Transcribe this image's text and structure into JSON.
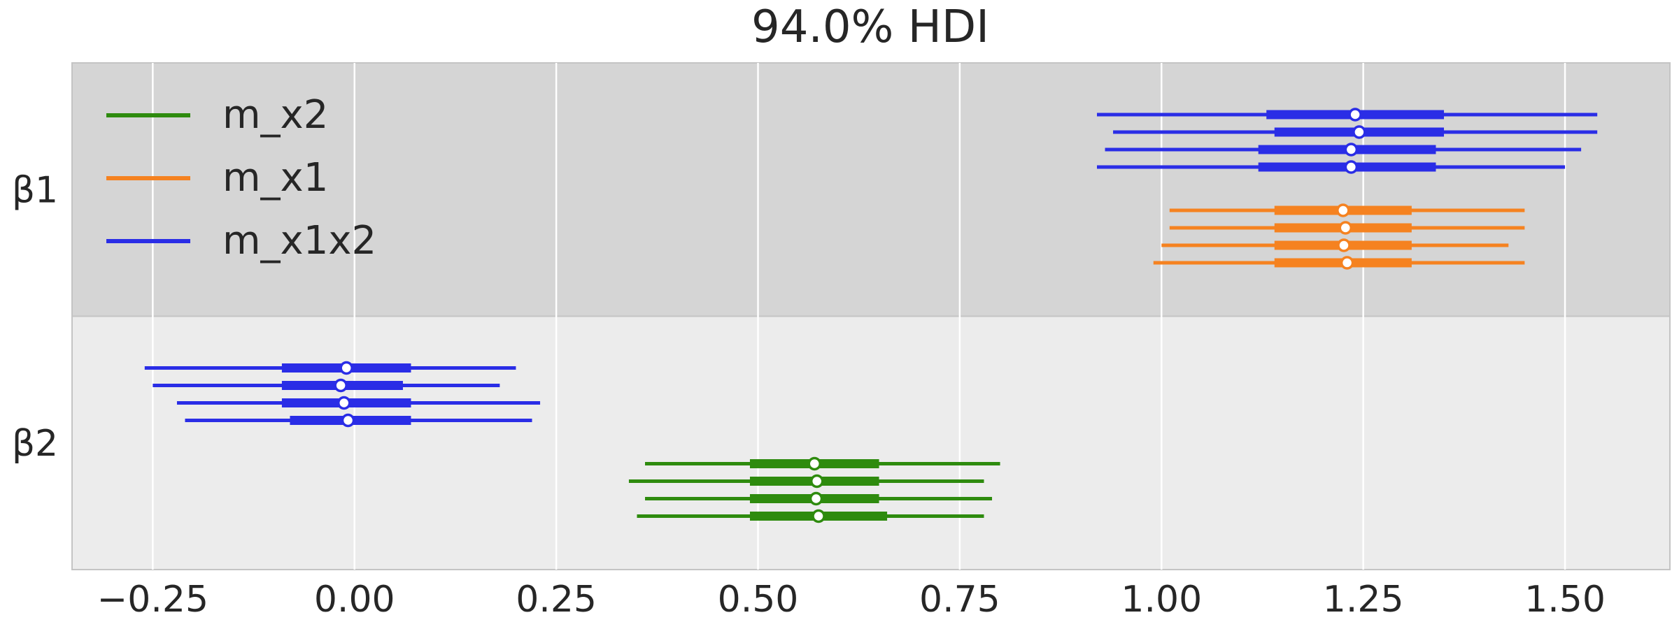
{
  "chart_data": {
    "type": "forest",
    "title": "94.0% HDI",
    "xlabel": "",
    "ylabel": "",
    "xlim": [
      -0.35,
      1.63
    ],
    "xticks": [
      -0.25,
      0.0,
      0.25,
      0.5,
      0.75,
      1.0,
      1.25,
      1.5
    ],
    "xtick_labels": [
      "−0.25",
      "0.00",
      "0.25",
      "0.50",
      "0.75",
      "1.00",
      "1.25",
      "1.50"
    ],
    "grid": true,
    "legend_position": "top-left",
    "colors": {
      "m_x2": "#2e8b0e",
      "m_x1": "#f58220",
      "m_x1x2": "#2a2de6",
      "band_dark": "#d5d5d5",
      "band_light": "#ececec",
      "grid": "#ffffff"
    },
    "legend": [
      "m_x2",
      "m_x1",
      "m_x1x2"
    ],
    "parameters": [
      {
        "name": "β1",
        "models": [
          {
            "model": "m_x1x2",
            "chains": [
              {
                "hdi94": [
                  0.92,
                  1.54
                ],
                "iqr": [
                  1.13,
                  1.35
                ],
                "median": 1.24
              },
              {
                "hdi94": [
                  0.94,
                  1.54
                ],
                "iqr": [
                  1.14,
                  1.35
                ],
                "median": 1.245
              },
              {
                "hdi94": [
                  0.93,
                  1.52
                ],
                "iqr": [
                  1.12,
                  1.34
                ],
                "median": 1.235
              },
              {
                "hdi94": [
                  0.92,
                  1.5
                ],
                "iqr": [
                  1.12,
                  1.34
                ],
                "median": 1.235
              }
            ]
          },
          {
            "model": "m_x1",
            "chains": [
              {
                "hdi94": [
                  1.01,
                  1.45
                ],
                "iqr": [
                  1.14,
                  1.31
                ],
                "median": 1.225
              },
              {
                "hdi94": [
                  1.01,
                  1.45
                ],
                "iqr": [
                  1.14,
                  1.31
                ],
                "median": 1.228
              },
              {
                "hdi94": [
                  1.0,
                  1.43
                ],
                "iqr": [
                  1.14,
                  1.31
                ],
                "median": 1.226
              },
              {
                "hdi94": [
                  0.99,
                  1.45
                ],
                "iqr": [
                  1.14,
                  1.31
                ],
                "median": 1.23
              }
            ]
          }
        ]
      },
      {
        "name": "β2",
        "models": [
          {
            "model": "m_x1x2",
            "chains": [
              {
                "hdi94": [
                  -0.26,
                  0.2
                ],
                "iqr": [
                  -0.09,
                  0.07
                ],
                "median": -0.01
              },
              {
                "hdi94": [
                  -0.25,
                  0.18
                ],
                "iqr": [
                  -0.09,
                  0.06
                ],
                "median": -0.017
              },
              {
                "hdi94": [
                  -0.22,
                  0.23
                ],
                "iqr": [
                  -0.09,
                  0.07
                ],
                "median": -0.013
              },
              {
                "hdi94": [
                  -0.21,
                  0.22
                ],
                "iqr": [
                  -0.08,
                  0.07
                ],
                "median": -0.008
              }
            ]
          },
          {
            "model": "m_x2",
            "chains": [
              {
                "hdi94": [
                  0.36,
                  0.8
                ],
                "iqr": [
                  0.49,
                  0.65
                ],
                "median": 0.57
              },
              {
                "hdi94": [
                  0.34,
                  0.78
                ],
                "iqr": [
                  0.49,
                  0.65
                ],
                "median": 0.573
              },
              {
                "hdi94": [
                  0.36,
                  0.79
                ],
                "iqr": [
                  0.49,
                  0.65
                ],
                "median": 0.572
              },
              {
                "hdi94": [
                  0.35,
                  0.78
                ],
                "iqr": [
                  0.49,
                  0.66
                ],
                "median": 0.575
              }
            ]
          }
        ]
      }
    ]
  }
}
